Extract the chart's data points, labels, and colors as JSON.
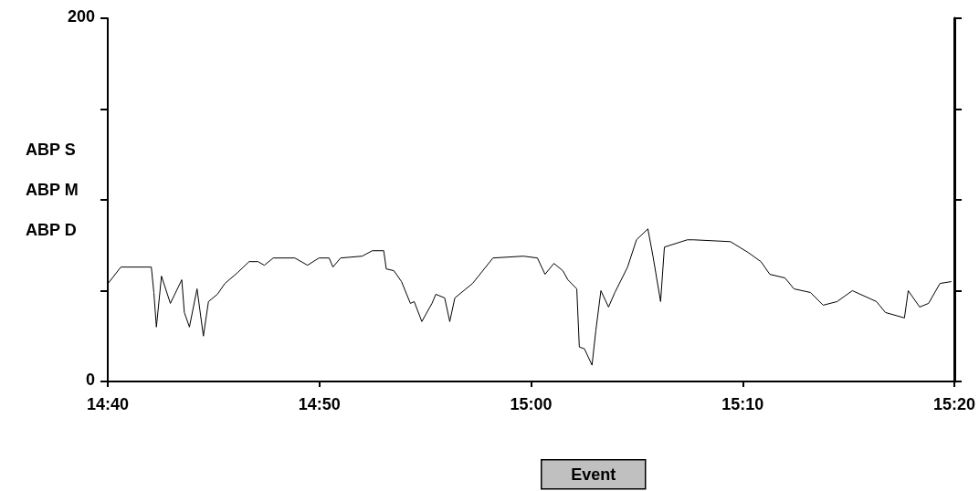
{
  "chart_data": {
    "type": "line",
    "x": [
      14.667,
      14.677,
      14.701,
      14.703,
      14.705,
      14.709,
      14.716,
      14.725,
      14.727,
      14.731,
      14.737,
      14.742,
      14.746,
      14.753,
      14.759,
      14.769,
      14.778,
      14.785,
      14.79,
      14.797,
      14.814,
      14.824,
      14.833,
      14.841,
      14.844,
      14.85,
      14.867,
      14.875,
      14.884,
      14.886,
      14.892,
      14.898,
      14.905,
      14.908,
      14.914,
      14.922,
      14.925,
      14.932,
      14.936,
      14.94,
      14.954,
      14.97,
      14.994,
      15.005,
      15.011,
      15.018,
      15.025,
      15.029,
      15.036,
      15.038,
      15.042,
      15.048,
      15.051,
      15.055,
      15.061,
      15.066,
      15.076,
      15.083,
      15.092,
      15.096,
      15.102,
      15.105,
      15.114,
      15.123,
      15.128,
      15.157,
      15.171,
      15.181,
      15.188,
      15.2,
      15.207,
      15.22,
      15.23,
      15.241,
      15.253,
      15.272,
      15.279,
      15.294,
      15.297,
      15.306,
      15.313,
      15.322,
      15.331
    ],
    "series": [
      {
        "color": "#000000",
        "values": [
          54,
          63,
          63,
          49,
          30,
          58,
          43,
          56,
          38,
          30,
          51,
          25,
          44,
          48,
          54,
          60,
          66,
          66,
          64,
          68,
          68,
          64,
          68,
          68,
          63,
          68,
          69,
          72,
          72,
          62,
          61,
          55,
          43,
          44,
          33,
          43,
          48,
          46,
          33,
          46,
          54,
          68,
          69,
          68,
          59,
          65,
          61,
          56,
          51,
          19,
          18,
          9,
          28,
          50,
          41,
          49,
          63,
          78,
          84,
          69,
          44,
          74,
          76,
          78,
          78,
          77,
          71,
          66,
          59,
          57,
          51,
          49,
          42,
          44,
          50,
          44,
          38,
          35,
          50,
          41,
          43,
          54,
          55
        ]
      }
    ],
    "xlim": [
      14.6667,
      15.3333
    ],
    "xticks": [
      {
        "value": 14.6667,
        "label": "14:40"
      },
      {
        "value": 14.8333,
        "label": "14:50"
      },
      {
        "value": 15.0,
        "label": "15:00"
      },
      {
        "value": 15.1667,
        "label": "15:10"
      },
      {
        "value": 15.3333,
        "label": "15:20"
      }
    ],
    "ylim": [
      0,
      200
    ],
    "yticks": [
      0,
      {
        "value": 50,
        "label": null
      },
      {
        "value": 100,
        "label": null
      },
      {
        "value": 150,
        "label": null
      },
      200
    ],
    "annotations": [
      "ABP S",
      "ABP M",
      "ABP D",
      "Event"
    ],
    "marker": "none",
    "line_style": "solid",
    "grid": false
  }
}
